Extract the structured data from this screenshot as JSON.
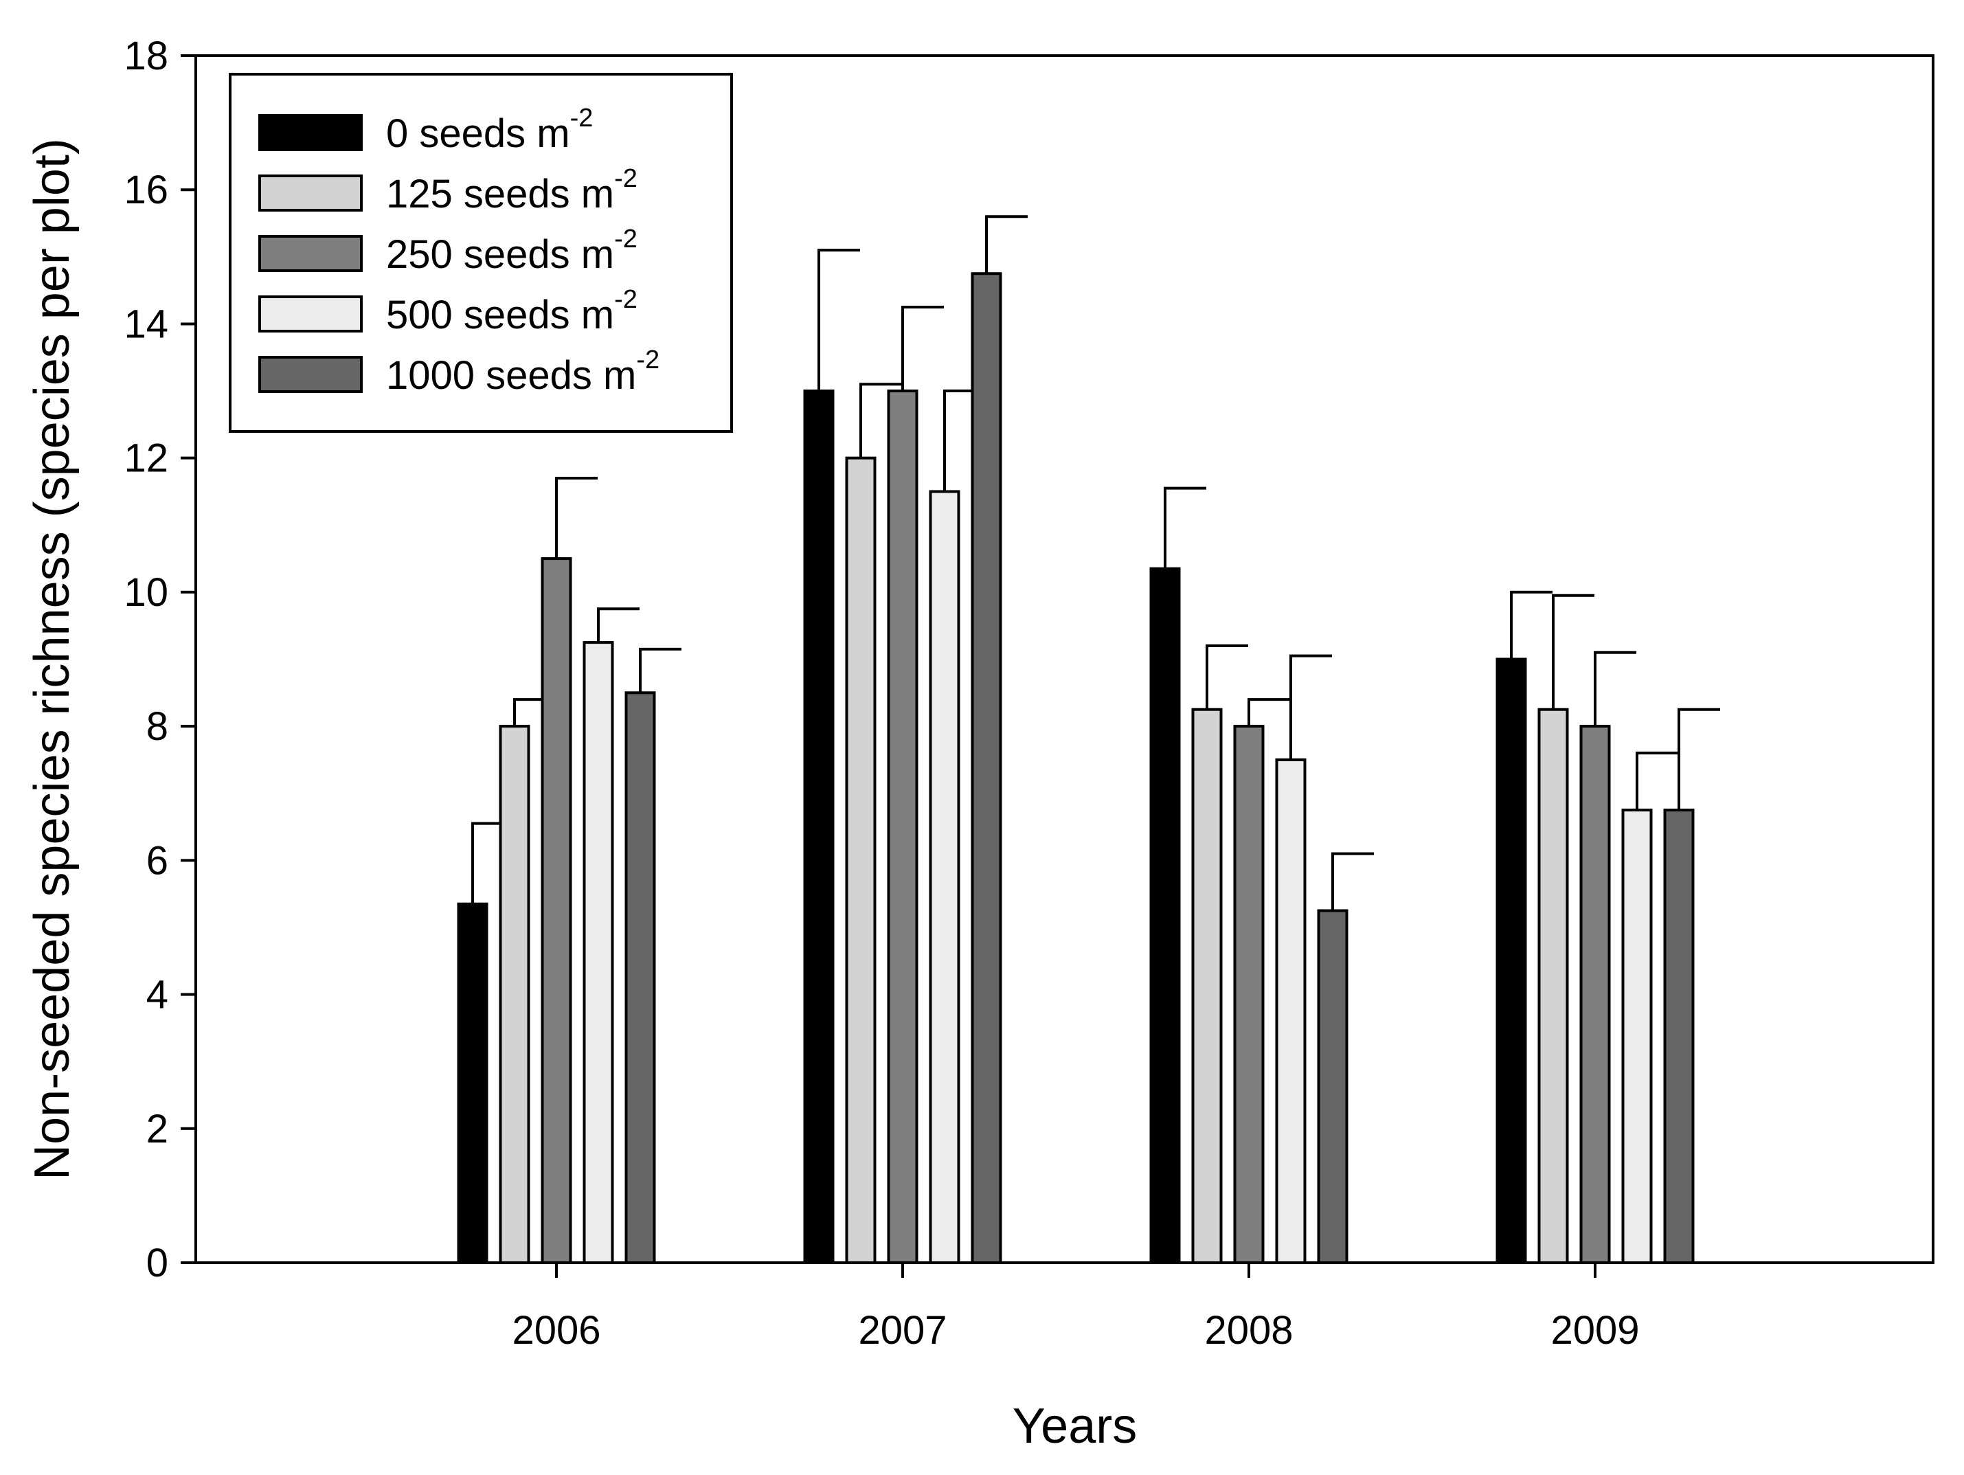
{
  "chart_data": {
    "type": "bar",
    "title": "",
    "xlabel": "Years",
    "ylabel": "Non-seeded species richness (species per plot)",
    "ylim": [
      0,
      18
    ],
    "yticks": [
      0,
      2,
      4,
      6,
      8,
      10,
      12,
      14,
      16,
      18
    ],
    "categories": [
      "2006",
      "2007",
      "2008",
      "2009"
    ],
    "legend_position": "top-left",
    "series": [
      {
        "name": "0 seeds m",
        "sup": "-2",
        "color": "#000000",
        "values": [
          5.35,
          13.0,
          10.35,
          9.0
        ],
        "errors": [
          1.2,
          2.1,
          1.2,
          1.0
        ]
      },
      {
        "name": "125 seeds m",
        "sup": "-2",
        "color": "#d3d3d3",
        "values": [
          8.0,
          12.0,
          8.25,
          8.25
        ],
        "errors": [
          0.4,
          1.1,
          0.95,
          1.7
        ]
      },
      {
        "name": "250 seeds m",
        "sup": "-2",
        "color": "#7f7f7f",
        "values": [
          10.5,
          13.0,
          8.0,
          8.0
        ],
        "errors": [
          1.2,
          1.25,
          0.4,
          1.1
        ]
      },
      {
        "name": "500 seeds m",
        "sup": "-2",
        "color": "#ececec",
        "values": [
          9.25,
          11.5,
          7.5,
          6.75
        ],
        "errors": [
          0.5,
          1.5,
          1.55,
          0.85
        ]
      },
      {
        "name": "1000 seeds m",
        "sup": "-2",
        "color": "#666666",
        "values": [
          8.5,
          14.75,
          5.25,
          6.75
        ],
        "errors": [
          0.65,
          0.85,
          0.85,
          1.5
        ]
      }
    ]
  }
}
